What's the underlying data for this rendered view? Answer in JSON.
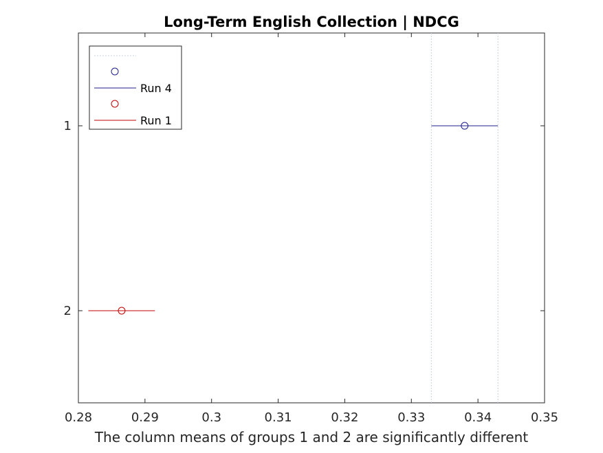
{
  "chart_data": {
    "type": "scatter",
    "title": "Long-Term English Collection | NDCG",
    "xlabel": "The column means of groups 1 and 2 are significantly different",
    "ylabel": "",
    "xlim": [
      0.28,
      0.35
    ],
    "x_ticks": [
      "0.28",
      "0.29",
      "0.3",
      "0.31",
      "0.32",
      "0.33",
      "0.34",
      "0.35"
    ],
    "y_ticks": [
      "1",
      "2"
    ],
    "grid": false,
    "legend_position": "top-left",
    "legend": [
      "Run 4",
      "Run 1"
    ],
    "series": [
      {
        "name": "Run 4",
        "group": "1",
        "mean": 0.338,
        "interval": [
          0.333,
          0.343
        ],
        "color": "#1f1f8c"
      },
      {
        "name": "Run 1",
        "group": "2",
        "mean": 0.2865,
        "interval": [
          0.2815,
          0.2915
        ],
        "color": "#c00000"
      }
    ],
    "reference_lines": [
      0.333,
      0.343
    ]
  }
}
